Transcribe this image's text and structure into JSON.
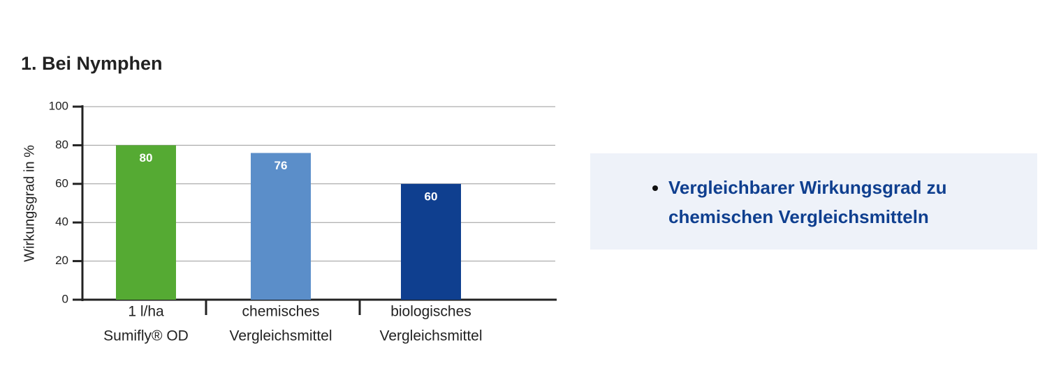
{
  "chart_data": {
    "type": "bar",
    "title": "1. Bei Nymphen",
    "y_label": "Wirkungsgrad in %",
    "categories": [
      [
        "1 l/ha",
        "Sumifly® OD"
      ],
      [
        "chemisches",
        "Vergleichsmittel"
      ],
      [
        "biologisches",
        "Vergleichsmittel"
      ]
    ],
    "values": [
      80,
      76,
      60
    ],
    "colors": [
      "#55aa33",
      "#5b8ec9",
      "#0f3f8f"
    ],
    "ylim": [
      0,
      100
    ],
    "yticks": [
      0,
      20,
      40,
      60,
      80,
      100
    ],
    "grid": true
  },
  "panel": {
    "bullets": [
      "Vergleichbarer Wirkungsgrad zu chemischen Vergleichsmitteln"
    ]
  }
}
